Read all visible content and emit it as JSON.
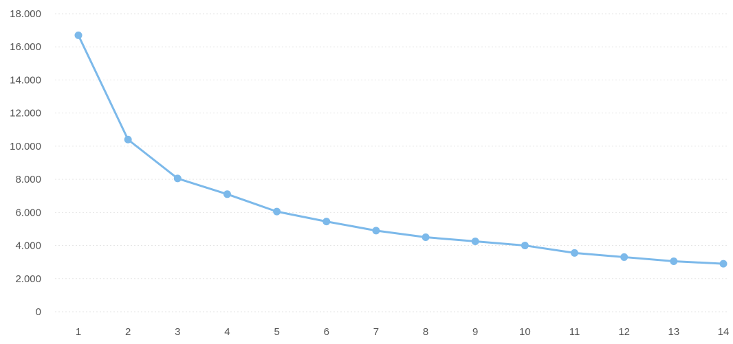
{
  "chart_data": {
    "type": "line",
    "title": "",
    "xlabel": "",
    "ylabel": "",
    "categories": [
      "1",
      "2",
      "3",
      "4",
      "5",
      "6",
      "7",
      "8",
      "9",
      "10",
      "11",
      "12",
      "13",
      "14"
    ],
    "y_tick_labels": [
      "0",
      "2.000",
      "4.000",
      "6.000",
      "8.000",
      "10.000",
      "12.000",
      "14.000",
      "16.000",
      "18.000"
    ],
    "y_ticks": [
      0,
      2000,
      4000,
      6000,
      8000,
      10000,
      12000,
      14000,
      16000,
      18000
    ],
    "ylim": [
      0,
      18000
    ],
    "grid": true,
    "legend": "none",
    "series": [
      {
        "values": [
          16700,
          10400,
          8050,
          7100,
          6050,
          5450,
          4900,
          4500,
          4250,
          4000,
          3550,
          3300,
          3050,
          2900
        ],
        "color": "#7cb9ea"
      }
    ]
  }
}
